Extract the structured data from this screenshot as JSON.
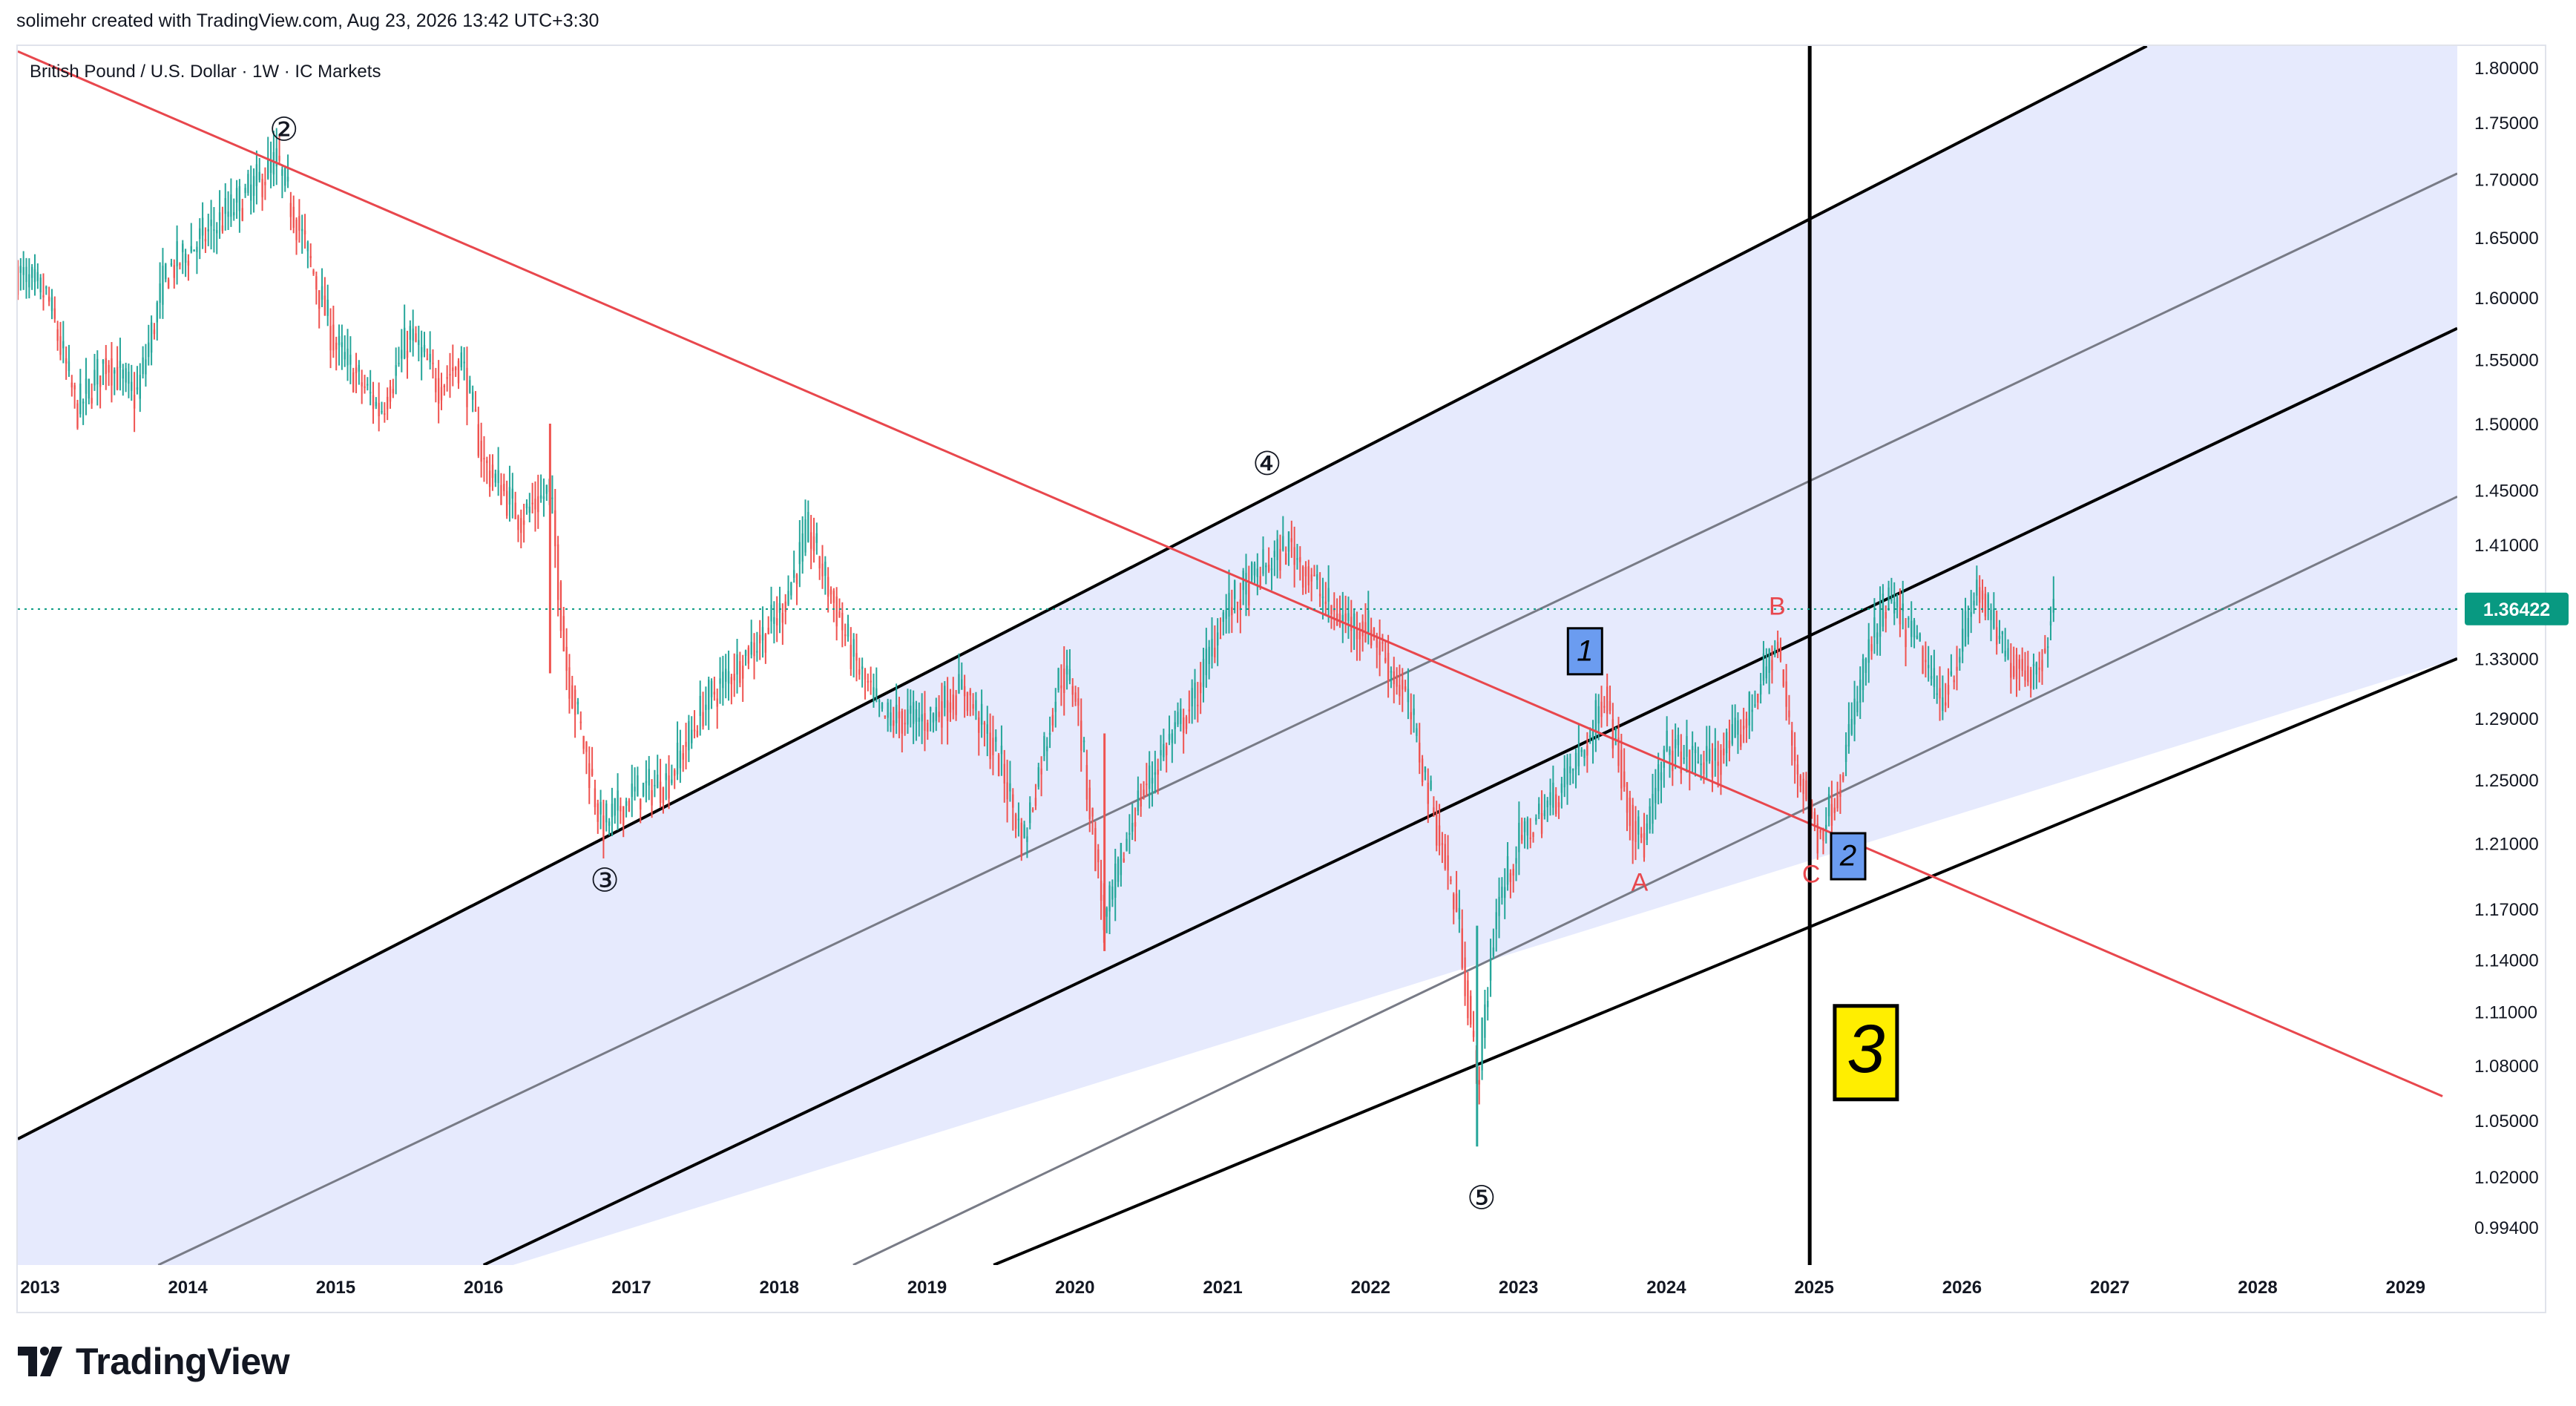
{
  "header": {
    "credit": "solimehr created with TradingView.com, Aug 23, 2026 13:42 UTC+3:30"
  },
  "footer": {
    "brand": "TradingView"
  },
  "colors": {
    "up": "#26a69a",
    "down": "#ef5350",
    "channel_fill": "#e5e9fd",
    "trendline": "#e8474d",
    "price_tag": "#089981",
    "wave_label": "#e8474d",
    "box_blue": "#6b9cf0",
    "box_yellow": "#ffee00"
  },
  "chart_data": {
    "type": "candlestick",
    "title": "British Pound / U.S. Dollar · 1W · IC Markets",
    "symbol": "British Pound / U.S. Dollar",
    "interval": "1W",
    "source": "IC Markets",
    "last_price": "1.36422",
    "y_scale": "log",
    "ylim": [
      0.975,
      1.82
    ],
    "xlim": [
      2012.85,
      2029.35
    ],
    "x_ticks": [
      "2013",
      "2014",
      "2015",
      "2016",
      "2017",
      "2018",
      "2019",
      "2020",
      "2021",
      "2022",
      "2023",
      "2024",
      "2025",
      "2026",
      "2027",
      "2028",
      "2029"
    ],
    "y_ticks": [
      "1.80000",
      "1.75000",
      "1.70000",
      "1.65000",
      "1.60000",
      "1.55000",
      "1.50000",
      "1.45000",
      "1.41000",
      "1.37000",
      "1.33000",
      "1.29000",
      "1.25000",
      "1.21000",
      "1.17000",
      "1.14000",
      "1.11000",
      "1.08000",
      "1.05000",
      "1.02000",
      "0.99400"
    ],
    "price_path": [
      [
        2012.85,
        1.62
      ],
      [
        2013.05,
        1.6
      ],
      [
        2013.25,
        1.51
      ],
      [
        2013.45,
        1.55
      ],
      [
        2013.65,
        1.52
      ],
      [
        2013.85,
        1.62
      ],
      [
        2014.1,
        1.65
      ],
      [
        2014.35,
        1.68
      ],
      [
        2014.6,
        1.715
      ],
      [
        2014.8,
        1.64
      ],
      [
        2015.0,
        1.56
      ],
      [
        2015.3,
        1.51
      ],
      [
        2015.5,
        1.57
      ],
      [
        2015.7,
        1.53
      ],
      [
        2015.85,
        1.55
      ],
      [
        2016.0,
        1.47
      ],
      [
        2016.25,
        1.43
      ],
      [
        2016.45,
        1.45
      ],
      [
        2016.55,
        1.33
      ],
      [
        2016.8,
        1.22
      ],
      [
        2017.0,
        1.24
      ],
      [
        2017.25,
        1.25
      ],
      [
        2017.5,
        1.3
      ],
      [
        2017.75,
        1.33
      ],
      [
        2018.0,
        1.36
      ],
      [
        2018.2,
        1.42
      ],
      [
        2018.5,
        1.33
      ],
      [
        2018.7,
        1.29
      ],
      [
        2019.0,
        1.29
      ],
      [
        2019.25,
        1.31
      ],
      [
        2019.5,
        1.26
      ],
      [
        2019.65,
        1.21
      ],
      [
        2019.9,
        1.32
      ],
      [
        2020.0,
        1.31
      ],
      [
        2020.2,
        1.16
      ],
      [
        2020.4,
        1.23
      ],
      [
        2020.6,
        1.27
      ],
      [
        2020.8,
        1.3
      ],
      [
        2021.0,
        1.36
      ],
      [
        2021.25,
        1.39
      ],
      [
        2021.45,
        1.41
      ],
      [
        2021.75,
        1.36
      ],
      [
        2022.0,
        1.35
      ],
      [
        2022.25,
        1.3
      ],
      [
        2022.45,
        1.22
      ],
      [
        2022.6,
        1.16
      ],
      [
        2022.72,
        1.07
      ],
      [
        2022.85,
        1.17
      ],
      [
        2023.0,
        1.21
      ],
      [
        2023.25,
        1.24
      ],
      [
        2023.5,
        1.28
      ],
      [
        2023.58,
        1.31
      ],
      [
        2023.78,
        1.22
      ],
      [
        2023.85,
        1.21
      ],
      [
        2024.0,
        1.27
      ],
      [
        2024.3,
        1.26
      ],
      [
        2024.5,
        1.28
      ],
      [
        2024.7,
        1.33
      ],
      [
        2024.75,
        1.34
      ],
      [
        2024.85,
        1.27
      ],
      [
        2025.02,
        1.215
      ],
      [
        2025.15,
        1.24
      ],
      [
        2025.35,
        1.33
      ],
      [
        2025.5,
        1.37
      ],
      [
        2025.7,
        1.34
      ],
      [
        2025.85,
        1.3
      ],
      [
        2026.0,
        1.34
      ],
      [
        2026.1,
        1.38
      ],
      [
        2026.3,
        1.33
      ],
      [
        2026.5,
        1.32
      ],
      [
        2026.62,
        1.364
      ]
    ]
  },
  "annotations": {
    "waves": [
      {
        "label": "②",
        "x": 2014.65,
        "y": 1.742
      },
      {
        "label": "③",
        "x": 2016.82,
        "y": 1.186
      },
      {
        "label": "④",
        "x": 2021.3,
        "y": 1.468
      },
      {
        "label": "⑤",
        "x": 2022.75,
        "y": 1.008
      }
    ],
    "abc": [
      {
        "label": "A",
        "x": 2023.82,
        "y": 1.185
      },
      {
        "label": "B",
        "x": 2024.75,
        "y": 1.365
      },
      {
        "label": "C",
        "x": 2024.98,
        "y": 1.19
      }
    ],
    "boxes": [
      {
        "label": "1",
        "x": 2023.45,
        "y": 1.335,
        "style": "blue"
      },
      {
        "label": "2",
        "x": 2025.23,
        "y": 1.202,
        "style": "blue"
      },
      {
        "label": "3",
        "x": 2025.35,
        "y": 1.087,
        "style": "yellow"
      }
    ],
    "vertical_line_x": 2024.97
  }
}
